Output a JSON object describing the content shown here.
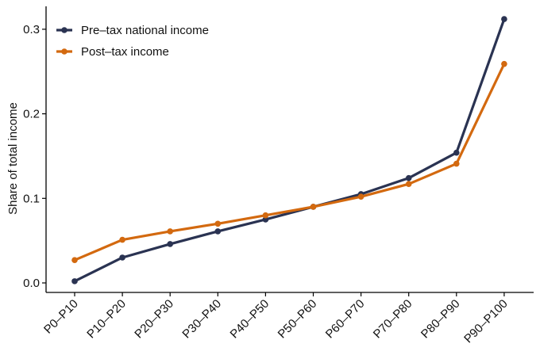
{
  "chart_data": {
    "type": "line",
    "title": "",
    "xlabel": "",
    "ylabel": "Share of total income",
    "categories": [
      "P0–P10",
      "P10–P20",
      "P20–P30",
      "P30–P40",
      "P40–P50",
      "P50–P60",
      "P60–P70",
      "P70–P80",
      "P80–P90",
      "P90–P100"
    ],
    "ylim": [
      -0.01,
      0.32
    ],
    "yticks": [
      0.0,
      0.1,
      0.2,
      0.3
    ],
    "ytick_labels": [
      "0.0",
      "0.1",
      "0.2",
      "0.3"
    ],
    "grid": false,
    "legend_position": "top-left",
    "series": [
      {
        "name": "Pre–tax national income",
        "color": "#2a3352",
        "values": [
          0.002,
          0.03,
          0.046,
          0.061,
          0.075,
          0.09,
          0.105,
          0.124,
          0.154,
          0.312
        ]
      },
      {
        "name": "Post–tax income",
        "color": "#d3690f",
        "values": [
          0.027,
          0.051,
          0.061,
          0.07,
          0.08,
          0.09,
          0.102,
          0.117,
          0.141,
          0.259
        ]
      }
    ]
  }
}
